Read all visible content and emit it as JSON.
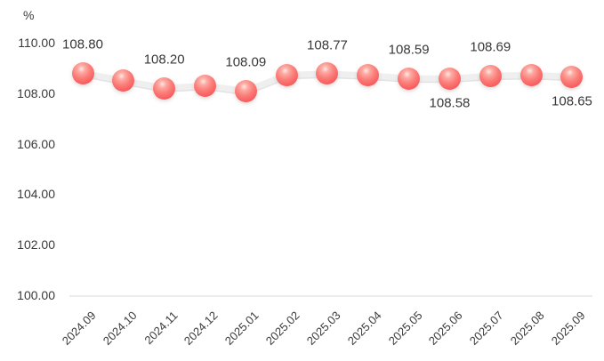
{
  "chart_data": {
    "type": "line",
    "unit_label": "%",
    "categories": [
      "2024.09",
      "2024.10",
      "2024.11",
      "2024.12",
      "2025.01",
      "2025.02",
      "2025.03",
      "2025.04",
      "2025.05",
      "2025.06",
      "2025.07",
      "2025.08",
      "2025.09"
    ],
    "values": [
      108.8,
      108.5,
      108.2,
      108.3,
      108.09,
      108.72,
      108.77,
      108.7,
      108.59,
      108.58,
      108.69,
      108.72,
      108.65
    ],
    "point_labels": [
      "108.80",
      null,
      "108.20",
      null,
      "108.09",
      null,
      "108.77",
      null,
      "108.59",
      "108.58",
      "108.69",
      null,
      "108.65"
    ],
    "point_label_sides": [
      "above",
      null,
      "above",
      null,
      "above",
      null,
      "above",
      null,
      "above",
      "below",
      "above",
      null,
      "below"
    ],
    "y_ticks": [
      "110.00",
      "108.00",
      "106.00",
      "104.00",
      "102.00",
      "100.00"
    ],
    "ylim": [
      100,
      110
    ],
    "x_tick_rotation_deg": 45,
    "grid": false,
    "legend": "none",
    "title": "",
    "xlabel": "",
    "ylabel": "%",
    "colors": {
      "point_body": "#f96363",
      "point_highlight": "#ffe9e4",
      "series_line": "#efefef",
      "series_line_shadow": "#e3e3e3",
      "axis_line": "#d9d9d9",
      "text": "#3a3a3a"
    }
  }
}
